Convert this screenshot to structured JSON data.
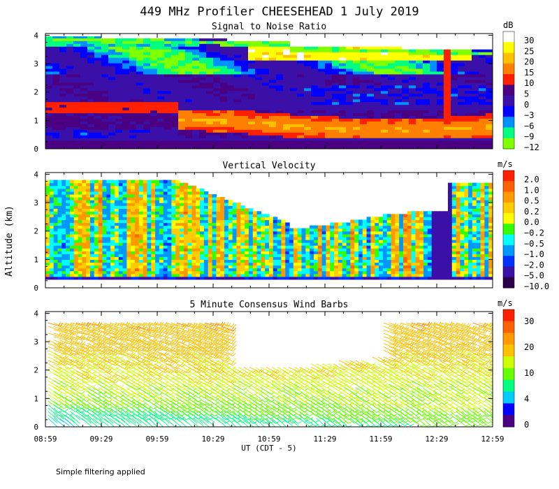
{
  "title": "449 MHz Profiler CHEESEHEAD  1 July 2019",
  "xlabel": "UT  (CDT - 5)",
  "ylabel": "Altitude (km)",
  "footnote": "Simple filtering applied",
  "x_ticks": [
    "08:59",
    "09:29",
    "09:59",
    "10:29",
    "10:59",
    "11:29",
    "11:59",
    "12:29",
    "12:59"
  ],
  "y_ticks": [
    "0",
    "1",
    "2",
    "3",
    "4"
  ],
  "chart_data": [
    {
      "type": "heatmap",
      "title": "Signal to Noise Ratio",
      "unit": "dB",
      "xlim": [
        "08:59",
        "12:59"
      ],
      "ylim": [
        0,
        4
      ],
      "colorbar": {
        "labels": [
          "30",
          "25",
          "20",
          "15",
          "10",
          "5",
          "0",
          "−3",
          "−6",
          "−9",
          "−12"
        ],
        "colors": [
          "#ffffff",
          "#ffff00",
          "#ffc000",
          "#ff8000",
          "#ff2000",
          "#4b0082",
          "#3a10a8",
          "#0000ff",
          "#0090ff",
          "#00ff80",
          "#80ff00"
        ]
      },
      "features": [
        {
          "name": "low-level high SNR band",
          "altitude_km": [
            0.4,
            1.3
          ],
          "snr_db": [
            15,
            25
          ]
        },
        {
          "name": "upper layer",
          "altitude_km": [
            1.3,
            4.0
          ],
          "snr_db": [
            -6,
            30
          ]
        }
      ]
    },
    {
      "type": "heatmap",
      "title": "Vertical Velocity",
      "unit": "m/s",
      "xlim": [
        "08:59",
        "12:59"
      ],
      "ylim": [
        0,
        4
      ],
      "colorbar": {
        "labels": [
          "2.0",
          "1.0",
          "0.5",
          "0.2",
          "0.0",
          "−0.2",
          "−0.5",
          "−1.0",
          "−2.0",
          "−5.0",
          "−10.0"
        ],
        "colors": [
          "#ff2000",
          "#ff6000",
          "#ff9900",
          "#ffcc00",
          "#ffff00",
          "#33ff00",
          "#00ffff",
          "#0099ff",
          "#0033ff",
          "#3a10a8",
          "#2a004a"
        ]
      },
      "range_m_s": [
        -10.0,
        2.0
      ]
    },
    {
      "type": "scatter",
      "title": "5 Minute Consensus Wind Barbs",
      "unit": "m/s",
      "xlim": [
        "08:59",
        "12:59"
      ],
      "ylim": [
        0,
        4
      ],
      "colorbar": {
        "labels": [
          "30",
          "20",
          "10",
          "4",
          "0"
        ],
        "colors": [
          "#ff2000",
          "#ff8000",
          "#ffc000",
          "#ccff00",
          "#00ff80",
          "#00ccff",
          "#0000ff",
          "#4b0082"
        ]
      },
      "speed_range_m_s": [
        0,
        35
      ]
    }
  ]
}
